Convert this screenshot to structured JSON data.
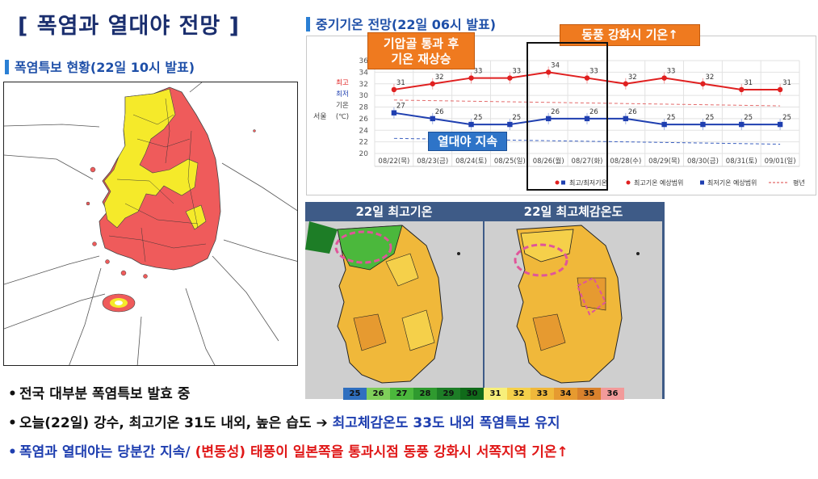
{
  "title": "[ 폭염과 열대야 전망 ]",
  "left_section": {
    "label": "폭염특보 현황(22일 10시 발표)"
  },
  "chart_section": {
    "label": "중기기온 전망(22일 06시 발표)"
  },
  "callouts": {
    "c1_line1": "기압골 통과 후",
    "c1_line2": "기온 재상승",
    "c2": "동풍 강화시 기온↑",
    "c3": "열대야 지속"
  },
  "chart_data": {
    "type": "line",
    "region": "서울",
    "x": [
      "08/22(목)",
      "08/23(금)",
      "08/24(토)",
      "08/25(일)",
      "08/26(월)",
      "08/27(화)",
      "08/28(수)",
      "08/29(목)",
      "08/30(금)",
      "08/31(토)",
      "09/01(일)"
    ],
    "ylim": [
      20,
      36
    ],
    "yticks": [
      20,
      22,
      24,
      26,
      28,
      30,
      32,
      34,
      36
    ],
    "ylabel_left": [
      "최고",
      "최저",
      "기온",
      "(℃)"
    ],
    "series": [
      {
        "name": "최고기온",
        "color": "#e02020",
        "values": [
          31,
          32,
          33,
          33,
          34,
          33,
          32,
          33,
          32,
          31,
          31
        ]
      },
      {
        "name": "최저기온",
        "color": "#1f3fb0",
        "values": [
          27,
          26,
          25,
          25,
          26,
          26,
          26,
          25,
          25,
          25,
          25
        ]
      }
    ],
    "normal_high": [
      29.2,
      29.1,
      29.0,
      28.9,
      28.8,
      28.7,
      28.6,
      28.5,
      28.4,
      28.3,
      28.2
    ],
    "normal_low": [
      22.6,
      22.5,
      22.4,
      22.3,
      22.2,
      22.1,
      22.0,
      21.9,
      21.8,
      21.7,
      21.6
    ],
    "legend": [
      "최고/최저기온",
      "최고기온 예상범위",
      "최저기온 예상범위",
      "평년"
    ],
    "grid": true
  },
  "satellite": {
    "panel1": "22일 최고기온",
    "panel2": "22일 최고체감온도",
    "scale": [
      {
        "value": "25",
        "color": "#2f6fbf"
      },
      {
        "value": "26",
        "color": "#7fcf5a"
      },
      {
        "value": "27",
        "color": "#4bb83c"
      },
      {
        "value": "28",
        "color": "#2f9a2f"
      },
      {
        "value": "29",
        "color": "#1d7d26"
      },
      {
        "value": "30",
        "color": "#106b1a"
      },
      {
        "value": "31",
        "color": "#f7ef7a"
      },
      {
        "value": "32",
        "color": "#f5d04a"
      },
      {
        "value": "33",
        "color": "#f0b83a"
      },
      {
        "value": "34",
        "color": "#e69a30"
      },
      {
        "value": "35",
        "color": "#d9812c"
      },
      {
        "value": "36",
        "color": "#f29a9a"
      }
    ]
  },
  "bullets": {
    "b1": "전국 대부분 폭염특보 발효 중",
    "b2_a": "오늘(22일) 강수, 최고기온 31도 내외, 높은 습도 ➔ ",
    "b2_b": "최고체감온도 33도 내외 폭염특보 유지",
    "b3_a": "폭염과 열대야는 당분간 지속/ ",
    "b3_b": "(변동성) 태풍이 일본쪽을 통과시점 동풍 강화시 서쪽지역 기온↑"
  },
  "colors": {
    "warning": "#ef5b5b",
    "advisory": "#f5ea2a",
    "accent": "#2a7fd4"
  }
}
